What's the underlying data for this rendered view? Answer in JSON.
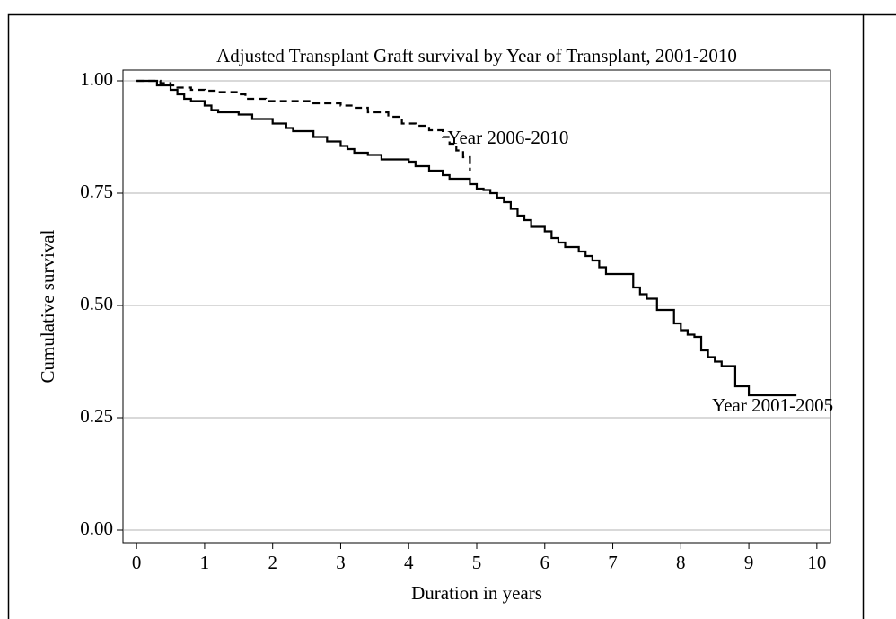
{
  "chart_data": {
    "type": "line",
    "step": "post",
    "title": "Adjusted Transplant Graft survival by Year of Transplant, 2001-2010",
    "x_label": "Duration in years",
    "y_label": "Cumulative survival",
    "xlim": [
      -0.2,
      10.2
    ],
    "ylim": [
      -0.028,
      1.024
    ],
    "xticks": [
      0,
      1,
      2,
      3,
      4,
      5,
      6,
      7,
      8,
      9,
      10
    ],
    "yticks": [
      {
        "value": 0,
        "label": "0.00"
      },
      {
        "value": 0.25,
        "label": "0.25"
      },
      {
        "value": 0.5,
        "label": "0.50"
      },
      {
        "value": 0.75,
        "label": "0.75"
      },
      {
        "value": 1,
        "label": "1.00"
      }
    ],
    "grid": true,
    "series": [
      {
        "name": "Year 2001-2005",
        "color": "#000000",
        "dash": false,
        "x": [
          0,
          0.3,
          0.5,
          0.6,
          0.7,
          0.8,
          1.0,
          1.1,
          1.2,
          1.5,
          1.7,
          2.0,
          2.2,
          2.3,
          2.6,
          2.8,
          3.0,
          3.1,
          3.2,
          3.4,
          3.6,
          4.0,
          4.1,
          4.3,
          4.5,
          4.6,
          4.9,
          5.0,
          5.1,
          5.2,
          5.3,
          5.4,
          5.5,
          5.6,
          5.7,
          5.8,
          6.0,
          6.1,
          6.2,
          6.3,
          6.5,
          6.6,
          6.7,
          6.8,
          6.9,
          7.3,
          7.4,
          7.5,
          7.65,
          7.9,
          8.0,
          8.1,
          8.2,
          8.3,
          8.4,
          8.5,
          8.6,
          8.8,
          9.0,
          9.7
        ],
        "values": [
          1.0,
          0.99,
          0.98,
          0.97,
          0.96,
          0.955,
          0.945,
          0.935,
          0.93,
          0.925,
          0.915,
          0.905,
          0.895,
          0.888,
          0.875,
          0.865,
          0.855,
          0.848,
          0.84,
          0.835,
          0.825,
          0.82,
          0.81,
          0.8,
          0.79,
          0.782,
          0.77,
          0.76,
          0.757,
          0.75,
          0.74,
          0.73,
          0.715,
          0.7,
          0.69,
          0.675,
          0.665,
          0.65,
          0.64,
          0.63,
          0.62,
          0.61,
          0.6,
          0.585,
          0.57,
          0.54,
          0.525,
          0.515,
          0.49,
          0.46,
          0.445,
          0.435,
          0.43,
          0.4,
          0.385,
          0.375,
          0.365,
          0.32,
          0.3,
          0.3
        ]
      },
      {
        "name": "Year 2006-2010",
        "color": "#000000",
        "dash": true,
        "x": [
          0,
          0.35,
          0.5,
          0.6,
          0.8,
          1.0,
          1.2,
          1.5,
          1.6,
          1.9,
          2.6,
          3.0,
          3.2,
          3.4,
          3.7,
          3.9,
          4.1,
          4.3,
          4.5,
          4.6,
          4.7,
          4.8,
          4.9
        ],
        "values": [
          1.0,
          0.995,
          0.99,
          0.985,
          0.98,
          0.978,
          0.975,
          0.97,
          0.96,
          0.955,
          0.95,
          0.945,
          0.94,
          0.93,
          0.92,
          0.905,
          0.9,
          0.89,
          0.875,
          0.86,
          0.845,
          0.83,
          0.8
        ]
      }
    ]
  }
}
